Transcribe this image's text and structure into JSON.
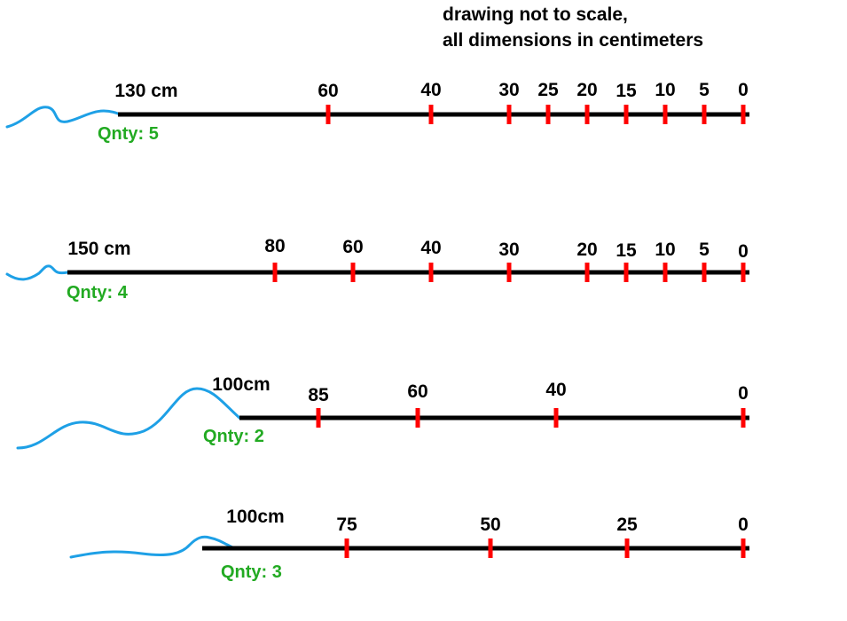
{
  "note": {
    "line1": "drawing not to scale,",
    "line2": "all dimensions in centimeters"
  },
  "colors": {
    "rope": "#000000",
    "tick": "#ff0000",
    "squiggle": "#1ea0e6",
    "qnty": "#22aa22",
    "text": "#000000"
  },
  "ropes": [
    {
      "length_label": "130 cm",
      "qnty_label": "Qnty: 5",
      "marks": [
        {
          "label": "60",
          "value": 60
        },
        {
          "label": "40",
          "value": 40
        },
        {
          "label": "30",
          "value": 30
        },
        {
          "label": "25",
          "value": 25
        },
        {
          "label": "20",
          "value": 20
        },
        {
          "label": "15",
          "value": 15
        },
        {
          "label": "10",
          "value": 10
        },
        {
          "label": "5",
          "value": 5
        },
        {
          "label": "0",
          "value": 0
        }
      ]
    },
    {
      "length_label": "150 cm",
      "qnty_label": "Qnty: 4",
      "marks": [
        {
          "label": "80",
          "value": 80
        },
        {
          "label": "60",
          "value": 60
        },
        {
          "label": "40",
          "value": 40
        },
        {
          "label": "30",
          "value": 30
        },
        {
          "label": "20",
          "value": 20
        },
        {
          "label": "15",
          "value": 15
        },
        {
          "label": "10",
          "value": 10
        },
        {
          "label": "5",
          "value": 5
        },
        {
          "label": "0",
          "value": 0
        }
      ]
    },
    {
      "length_label": "100cm",
      "qnty_label": "Qnty: 2",
      "marks": [
        {
          "label": "85",
          "value": 85
        },
        {
          "label": "60",
          "value": 60
        },
        {
          "label": "40",
          "value": 40
        },
        {
          "label": "0",
          "value": 0
        }
      ]
    },
    {
      "length_label": "100cm",
      "qnty_label": "Qnty: 3",
      "marks": [
        {
          "label": "75",
          "value": 75
        },
        {
          "label": "50",
          "value": 50
        },
        {
          "label": "25",
          "value": 25
        },
        {
          "label": "0",
          "value": 0
        }
      ]
    }
  ]
}
